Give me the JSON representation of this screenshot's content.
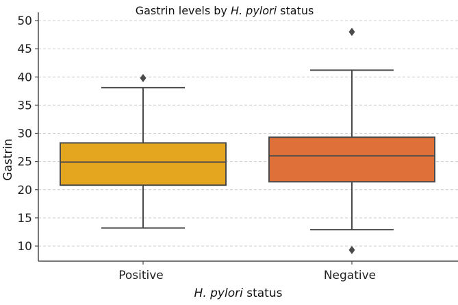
{
  "chart_data": {
    "type": "box",
    "title": {
      "prefix": "Gastrin levels by ",
      "italic": "H. pylori",
      "suffix": " status"
    },
    "xlabel": {
      "italic": "H. pylori",
      "suffix": " status"
    },
    "ylabel": "Gastrin",
    "ylim": [
      8,
      50
    ],
    "yticks": [
      10,
      15,
      20,
      25,
      30,
      35,
      40,
      45,
      50
    ],
    "grid": true,
    "categories": [
      "Positive",
      "Negative"
    ],
    "boxes": [
      {
        "category": "Positive",
        "whisker_low": 13.2,
        "q1": 20.8,
        "median": 24.9,
        "q3": 28.3,
        "whisker_high": 38.1,
        "outliers": [
          39.8
        ],
        "color": "#E5A61F"
      },
      {
        "category": "Negative",
        "whisker_low": 12.9,
        "q1": 21.4,
        "median": 26.0,
        "q3": 29.3,
        "whisker_high": 41.2,
        "outliers": [
          48.0,
          9.3
        ],
        "color": "#E0703A"
      }
    ]
  },
  "colors": {
    "line": "#4a4a4a",
    "grid": "#cccccc"
  }
}
